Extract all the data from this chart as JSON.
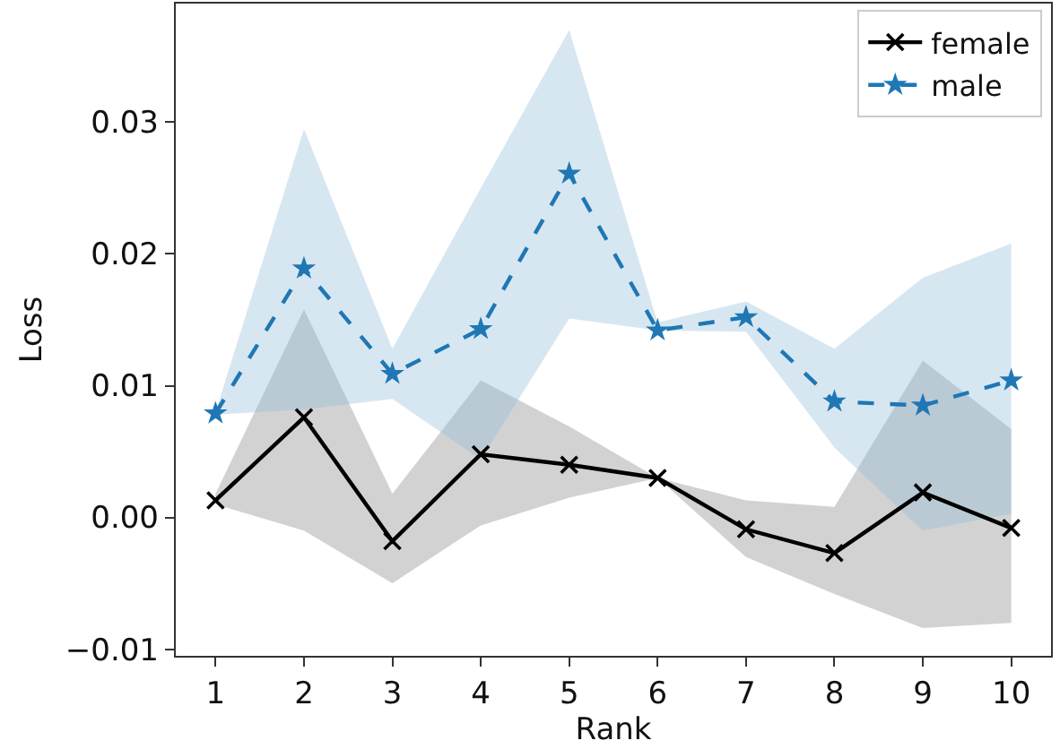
{
  "chart_data": {
    "type": "line",
    "xlabel": "Rank",
    "ylabel": "Loss",
    "x": [
      1,
      2,
      3,
      4,
      5,
      6,
      7,
      8,
      9,
      10
    ],
    "xlim": [
      0.55,
      10.45
    ],
    "xticks": [
      1,
      2,
      3,
      4,
      5,
      6,
      7,
      8,
      9,
      10
    ],
    "ylim": [
      -0.0105,
      0.039
    ],
    "yticks": [
      {
        "value": -0.01,
        "label": "−0.01"
      },
      {
        "value": 0.0,
        "label": "0.00"
      },
      {
        "value": 0.01,
        "label": "0.01"
      },
      {
        "value": 0.02,
        "label": "0.02"
      },
      {
        "value": 0.03,
        "label": "0.03"
      }
    ],
    "grid": false,
    "legend": "top right",
    "series": [
      {
        "name": "female",
        "color": "#000000",
        "marker": "cross",
        "line_style": "solid",
        "values": [
          0.0013,
          0.0076,
          -0.0018,
          0.0048,
          0.004,
          0.003,
          -0.0009,
          -0.0027,
          0.0019,
          -0.0008
        ],
        "lower": [
          0.001,
          -0.001,
          -0.005,
          -0.0006,
          0.0015,
          0.003,
          -0.003,
          -0.0058,
          -0.0084,
          -0.008
        ],
        "upper": [
          0.0018,
          0.0158,
          0.0018,
          0.0104,
          0.0069,
          0.003,
          0.0013,
          0.0008,
          0.0119,
          0.0067
        ]
      },
      {
        "name": "male",
        "color": "#1f77b4",
        "marker": "star",
        "line_style": "dashed",
        "values": [
          0.0079,
          0.0189,
          0.0109,
          0.0143,
          0.0261,
          0.0142,
          0.0152,
          0.0088,
          0.0085,
          0.0104
        ],
        "lower": [
          0.0078,
          0.0082,
          0.009,
          0.0044,
          0.0151,
          0.0142,
          0.0141,
          0.0053,
          -0.001,
          0.0003
        ],
        "upper": [
          0.008,
          0.0295,
          0.0128,
          0.025,
          0.037,
          0.0148,
          0.0164,
          0.0128,
          0.0182,
          0.0208
        ]
      }
    ]
  }
}
